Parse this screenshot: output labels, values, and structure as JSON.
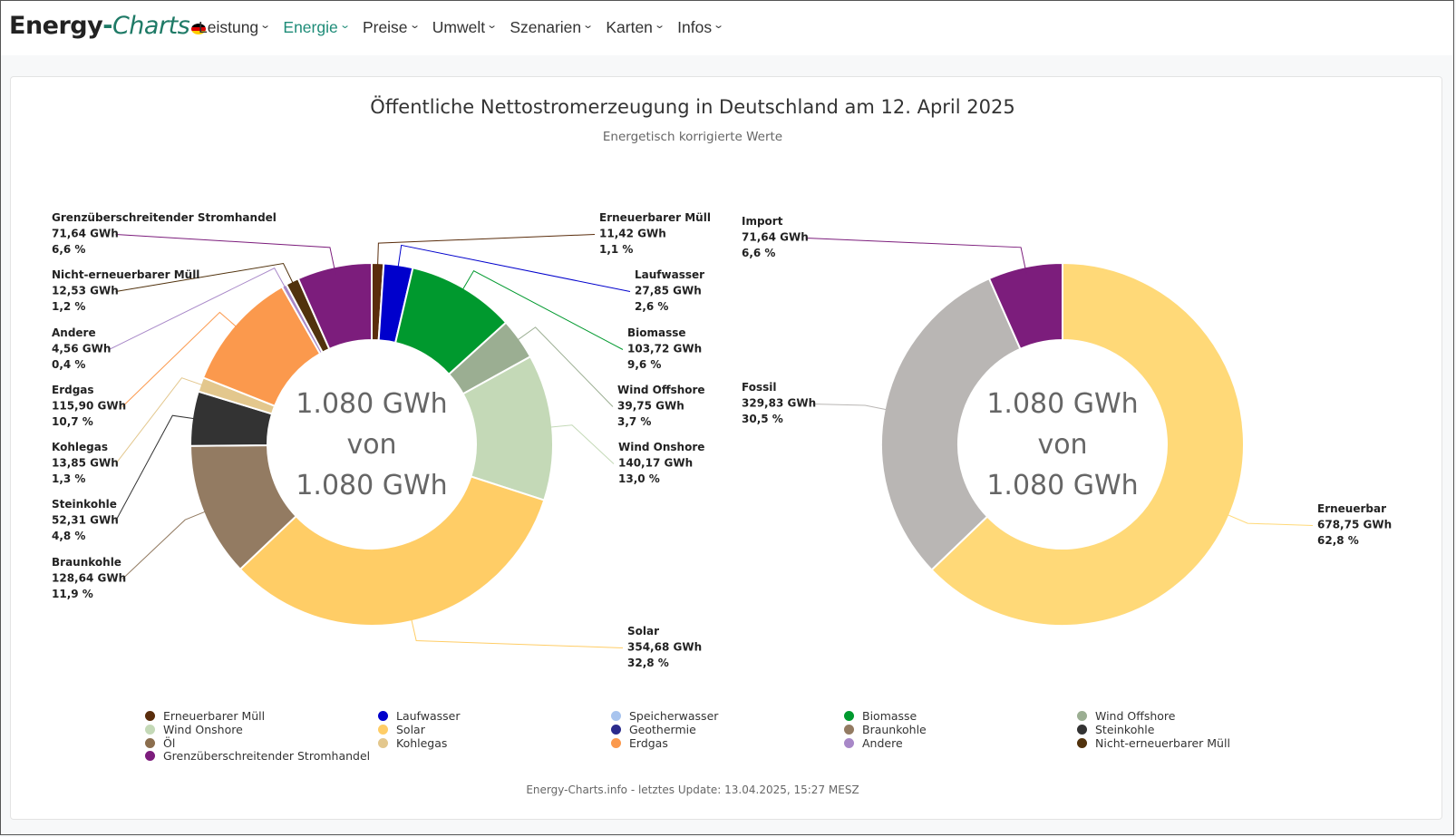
{
  "brand": {
    "part1": "Energy",
    "part2": "-",
    "part3": "Charts"
  },
  "nav": [
    {
      "label": "Leistung",
      "active": false
    },
    {
      "label": "Energie",
      "active": true
    },
    {
      "label": "Preise",
      "active": false
    },
    {
      "label": "Umwelt",
      "active": false
    },
    {
      "label": "Szenarien",
      "active": false
    },
    {
      "label": "Karten",
      "active": false
    },
    {
      "label": "Infos",
      "active": false
    }
  ],
  "footer": "Energy-Charts.info - letztes Update: 13.04.2025, 15:27 MESZ",
  "chart_data": [
    {
      "type": "pie",
      "variant": "donut",
      "title": "Öffentliche Nettostromerzeugung in Deutschland am 12. April 2025",
      "subtitle": "Energetisch korrigierte Werte",
      "unit": "GWh",
      "center_text": [
        "1.080 GWh",
        "von",
        "1.080 GWh"
      ],
      "slices": [
        {
          "name": "Erneuerbarer Müll",
          "value": 11.42,
          "value_label": "11,42 GWh",
          "percent_label": "1,1 %",
          "color": "#5a2d0c"
        },
        {
          "name": "Laufwasser",
          "value": 27.85,
          "value_label": "27,85 GWh",
          "percent_label": "2,6 %",
          "color": "#0000cc"
        },
        {
          "name": "Biomasse",
          "value": 103.72,
          "value_label": "103,72 GWh",
          "percent_label": "9,6 %",
          "color": "#00992e"
        },
        {
          "name": "Wind Offshore",
          "value": 39.75,
          "value_label": "39,75 GWh",
          "percent_label": "3,7 %",
          "color": "#9bae92"
        },
        {
          "name": "Wind Onshore",
          "value": 140.17,
          "value_label": "140,17 GWh",
          "percent_label": "13,0 %",
          "color": "#c4d9b7"
        },
        {
          "name": "Solar",
          "value": 354.68,
          "value_label": "354,68 GWh",
          "percent_label": "32,8 %",
          "color": "#ffcd66"
        },
        {
          "name": "Braunkohle",
          "value": 128.64,
          "value_label": "128,64 GWh",
          "percent_label": "11,9 %",
          "color": "#937b62"
        },
        {
          "name": "Steinkohle",
          "value": 52.31,
          "value_label": "52,31 GWh",
          "percent_label": "4,8 %",
          "color": "#333333"
        },
        {
          "name": "Kohlegas",
          "value": 13.85,
          "value_label": "13,85 GWh",
          "percent_label": "1,3 %",
          "color": "#e3c78d"
        },
        {
          "name": "Erdgas",
          "value": 115.9,
          "value_label": "115,90 GWh",
          "percent_label": "10,7 %",
          "color": "#fb994d"
        },
        {
          "name": "Andere",
          "value": 4.56,
          "value_label": "4,56 GWh",
          "percent_label": "0,4 %",
          "color": "#a888c8"
        },
        {
          "name": "Nicht-erneuerbarer Müll",
          "value": 12.53,
          "value_label": "12,53 GWh",
          "percent_label": "1,2 %",
          "color": "#51320d"
        },
        {
          "name": "Grenzüberschreitender Stromhandel",
          "value": 71.64,
          "value_label": "71,64 GWh",
          "percent_label": "6,6 %",
          "color": "#7c1d7c"
        }
      ]
    },
    {
      "type": "pie",
      "variant": "donut",
      "unit": "GWh",
      "center_text": [
        "1.080 GWh",
        "von",
        "1.080 GWh"
      ],
      "slices": [
        {
          "name": "Erneuerbar",
          "value": 678.75,
          "value_label": "678,75 GWh",
          "percent_label": "62,8 %",
          "color": "#ffd978"
        },
        {
          "name": "Fossil",
          "value": 329.83,
          "value_label": "329,83 GWh",
          "percent_label": "30,5 %",
          "color": "#b9b6b4"
        },
        {
          "name": "Import",
          "value": 71.64,
          "value_label": "71,64 GWh",
          "percent_label": "6,6 %",
          "color": "#7c1d7c"
        }
      ]
    }
  ],
  "legend": [
    {
      "label": "Erneuerbarer Müll",
      "color": "#5a2d0c"
    },
    {
      "label": "Laufwasser",
      "color": "#0000cc"
    },
    {
      "label": "Speicherwasser",
      "color": "#a8c4ee"
    },
    {
      "label": "Biomasse",
      "color": "#00992e"
    },
    {
      "label": "Wind Offshore",
      "color": "#9bae92"
    },
    {
      "label": "Wind Onshore",
      "color": "#c4d9b7"
    },
    {
      "label": "Solar",
      "color": "#ffcd66"
    },
    {
      "label": "Geothermie",
      "color": "#2b2b8c"
    },
    {
      "label": "Braunkohle",
      "color": "#937b62"
    },
    {
      "label": "Steinkohle",
      "color": "#333333"
    },
    {
      "label": "Öl",
      "color": "#8b6e4e"
    },
    {
      "label": "Kohlegas",
      "color": "#e3c78d"
    },
    {
      "label": "Erdgas",
      "color": "#fb994d"
    },
    {
      "label": "Andere",
      "color": "#a888c8"
    },
    {
      "label": "Nicht-erneuerbarer Müll",
      "color": "#51320d"
    },
    {
      "label": "Grenzüberschreitender Stromhandel",
      "color": "#7c1d7c"
    }
  ]
}
